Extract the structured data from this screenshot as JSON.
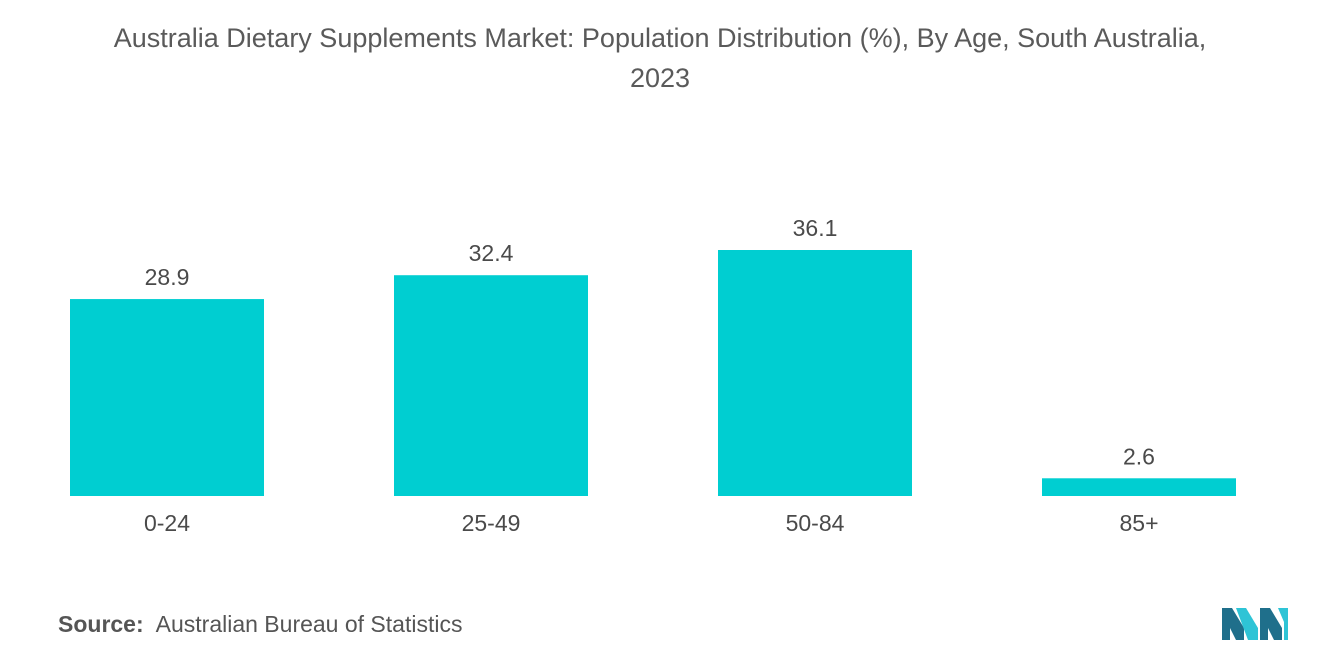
{
  "title_lines": [
    "Australia Dietary Supplements Market: Population Distribution (%), By Age, South Australia,",
    "2023"
  ],
  "source": {
    "label": "Source:",
    "text": "Australian Bureau of Statistics"
  },
  "colors": {
    "bar": "#00CED1",
    "logo_dark": "#1f6f8b",
    "logo_light": "#2ec4d6"
  },
  "logo_icon": "mordor-intelligence-logo-icon",
  "chart_data": {
    "type": "bar",
    "title": "Australia Dietary Supplements Market: Population Distribution (%), By Age, South Australia, 2023",
    "categories": [
      "0-24",
      "25-49",
      "50-84",
      "85+"
    ],
    "values": [
      28.9,
      32.4,
      36.1,
      2.6
    ],
    "value_labels": [
      "28.9",
      "32.4",
      "36.1",
      "2.6"
    ],
    "xlabel": "",
    "ylabel": "",
    "ylim": [
      0,
      36.1
    ],
    "grid": false,
    "legend": "none"
  }
}
